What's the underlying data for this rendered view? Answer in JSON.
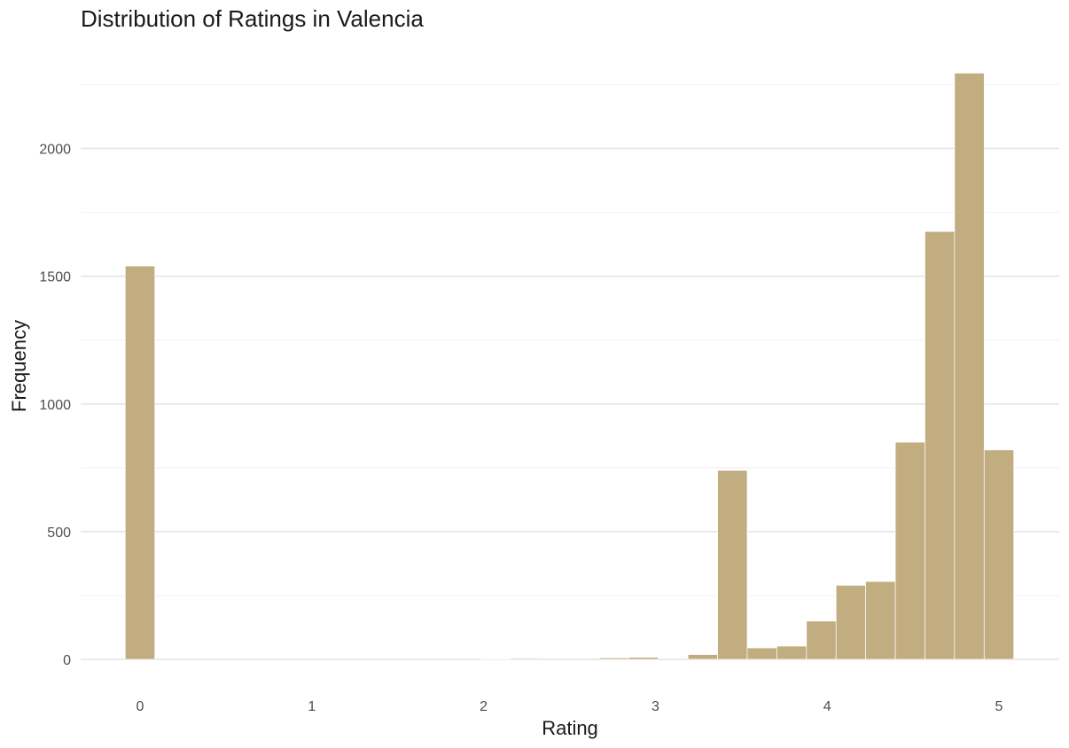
{
  "chart_data": {
    "type": "bar",
    "title": "Distribution of Ratings in Valencia",
    "xlabel": "Rating",
    "ylabel": "Frequency",
    "xlim": [
      -0.35,
      5.35
    ],
    "ylim": [
      -20,
      2300
    ],
    "x_ticks": [
      "0",
      "1",
      "2",
      "3",
      "4",
      "5"
    ],
    "y_ticks": [
      "0",
      "500",
      "1000",
      "1500",
      "2000"
    ],
    "grid": true,
    "bar_color": "#c2ad80",
    "bin_width": 0.17241,
    "bins": [
      {
        "center": 0.0,
        "value": 1540
      },
      {
        "center": 0.17241,
        "value": 0
      },
      {
        "center": 0.34483,
        "value": 0
      },
      {
        "center": 0.51724,
        "value": 0
      },
      {
        "center": 0.68966,
        "value": 0
      },
      {
        "center": 0.86207,
        "value": 0
      },
      {
        "center": 1.03448,
        "value": 0
      },
      {
        "center": 1.2069,
        "value": 0
      },
      {
        "center": 1.37931,
        "value": 0
      },
      {
        "center": 1.55172,
        "value": 0
      },
      {
        "center": 1.72414,
        "value": 0
      },
      {
        "center": 1.89655,
        "value": 0
      },
      {
        "center": 2.06897,
        "value": 1
      },
      {
        "center": 2.24138,
        "value": 4
      },
      {
        "center": 2.41379,
        "value": 0
      },
      {
        "center": 2.58621,
        "value": 0
      },
      {
        "center": 2.75862,
        "value": 6
      },
      {
        "center": 2.93103,
        "value": 8
      },
      {
        "center": 3.10345,
        "value": 0
      },
      {
        "center": 3.27586,
        "value": 19
      },
      {
        "center": 3.44828,
        "value": 740
      },
      {
        "center": 3.62069,
        "value": 45
      },
      {
        "center": 3.7931,
        "value": 52
      },
      {
        "center": 3.96552,
        "value": 150
      },
      {
        "center": 4.13793,
        "value": 290
      },
      {
        "center": 4.31034,
        "value": 305
      },
      {
        "center": 4.48276,
        "value": 850
      },
      {
        "center": 4.65517,
        "value": 1675
      },
      {
        "center": 4.82759,
        "value": 2295
      },
      {
        "center": 5.0,
        "value": 820
      }
    ]
  }
}
